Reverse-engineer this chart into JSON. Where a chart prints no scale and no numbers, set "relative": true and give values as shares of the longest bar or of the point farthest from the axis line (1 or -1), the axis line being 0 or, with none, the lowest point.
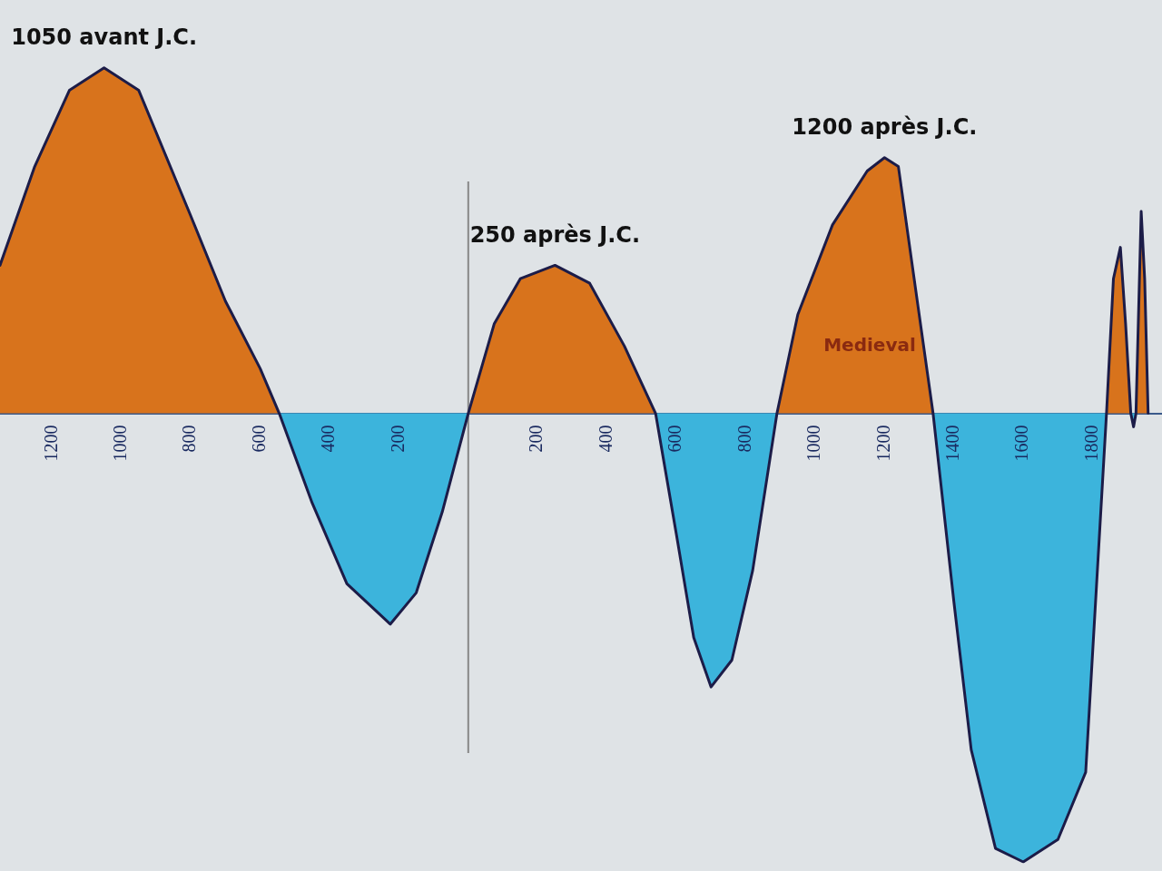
{
  "chart_data": {
    "type": "area",
    "relative": true,
    "legend": false,
    "grid": false,
    "marker": "none",
    "xlim": [
      -1350,
      2000
    ],
    "xticks": [
      {
        "value": -1200,
        "label": "1200"
      },
      {
        "value": -1000,
        "label": "1000"
      },
      {
        "value": -800,
        "label": "800"
      },
      {
        "value": -600,
        "label": "600"
      },
      {
        "value": -400,
        "label": "400"
      },
      {
        "value": -200,
        "label": "200"
      },
      {
        "value": 200,
        "label": "200"
      },
      {
        "value": 400,
        "label": "400"
      },
      {
        "value": 600,
        "label": "600"
      },
      {
        "value": 800,
        "label": "800"
      },
      {
        "value": 1000,
        "label": "1000"
      },
      {
        "value": 1200,
        "label": "1200"
      },
      {
        "value": 1400,
        "label": "1400"
      },
      {
        "value": 1600,
        "label": "1600"
      },
      {
        "value": 1800,
        "label": "1800"
      }
    ],
    "x": [
      -1350,
      -1250,
      -1150,
      -1050,
      -950,
      -800,
      -700,
      -600,
      -545,
      -450,
      -350,
      -225,
      -150,
      -75,
      0,
      75,
      150,
      250,
      350,
      450,
      540,
      600,
      650,
      700,
      760,
      820,
      890,
      950,
      1050,
      1150,
      1200,
      1240,
      1340,
      1400,
      1450,
      1520,
      1600,
      1700,
      1780,
      1840,
      1860,
      1880,
      1895,
      1910,
      1918,
      1925,
      1940,
      1950,
      1960
    ],
    "series": [
      {
        "color": "#d8731c",
        "values": [
          0.33,
          0.55,
          0.72,
          0.77,
          0.72,
          0.44,
          0.25,
          0.1,
          0,
          null,
          null,
          null,
          null,
          null,
          0,
          0.2,
          0.3,
          0.33,
          0.29,
          0.15,
          0,
          null,
          null,
          null,
          null,
          null,
          0,
          0.22,
          0.42,
          0.54,
          0.57,
          0.55,
          0,
          null,
          null,
          null,
          null,
          null,
          null,
          0,
          0.3,
          0.37,
          0.2,
          0,
          null,
          0,
          0.45,
          0.3,
          0
        ]
      },
      {
        "color": "#3cb4dc",
        "values": [
          null,
          null,
          null,
          null,
          null,
          null,
          null,
          null,
          0,
          -0.2,
          -0.38,
          -0.47,
          -0.4,
          -0.22,
          0,
          null,
          null,
          null,
          null,
          null,
          0,
          -0.27,
          -0.5,
          -0.61,
          -0.55,
          -0.35,
          0,
          null,
          null,
          null,
          null,
          null,
          0,
          -0.42,
          -0.75,
          -0.97,
          -1,
          -0.95,
          -0.8,
          0,
          null,
          null,
          null,
          0,
          -0.03,
          0,
          null,
          null,
          null
        ]
      },
      {
        "type": "line",
        "color": "#1c1c48",
        "values": [
          0.33,
          0.55,
          0.72,
          0.77,
          0.72,
          0.44,
          0.25,
          0.1,
          0,
          -0.2,
          -0.38,
          -0.47,
          -0.4,
          -0.22,
          0,
          0.2,
          0.3,
          0.33,
          0.29,
          0.15,
          0,
          -0.27,
          -0.5,
          -0.61,
          -0.55,
          -0.35,
          0,
          0.22,
          0.42,
          0.54,
          0.57,
          0.55,
          0,
          -0.42,
          -0.75,
          -0.97,
          -1,
          -0.95,
          -0.8,
          0,
          0.3,
          0.37,
          0.2,
          0,
          -0.03,
          0,
          0.45,
          0.3,
          0
        ]
      }
    ],
    "ref_lines": [
      {
        "axis": "x",
        "value": 0,
        "color": "#888888"
      }
    ],
    "annotations": [
      {
        "text": "1050 avant J.C.",
        "x": -1050,
        "y": 0.77
      },
      {
        "text": "250 après J.C.",
        "x": 250,
        "y": 0.33
      },
      {
        "text": "1200 après J.C.",
        "x": 1200,
        "y": 0.57
      },
      "Medieval"
    ]
  }
}
